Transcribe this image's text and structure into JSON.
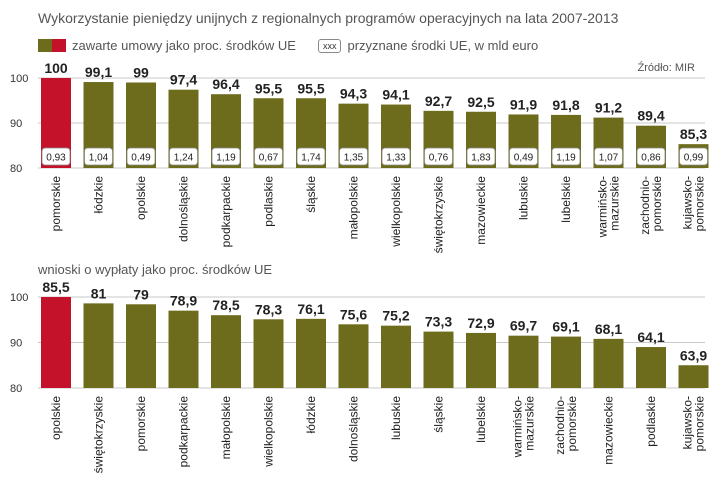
{
  "header": {
    "title": "Wykorzystanie pieniędzy unijnych z regionalnych programów operacyjnych na lata 2007-2013",
    "legend_contracts": "zawarte umowy jako proc. środków UE",
    "legend_box_sample": "xxx",
    "legend_granted": "przyznane środki UE, w mld euro",
    "source": "Źródło: MIR"
  },
  "colors": {
    "bar": "#6d6b1c",
    "highlight": "#c4122b",
    "grid": "#c8c8c8",
    "text": "#333333"
  },
  "chart_data": [
    {
      "type": "bar",
      "title": "zawarte umowy jako proc. środków UE",
      "ylim": [
        80,
        100
      ],
      "yticks": [
        "80",
        "90",
        "100"
      ],
      "categories": [
        "pomorskie",
        "łódzkie",
        "opolskie",
        "dolnośląskie",
        "podkarpackie",
        "podlaskie",
        "śląskie",
        "małopolskie",
        "wielkopolskie",
        "świętokrzyskie",
        "mazowieckie",
        "lubuskie",
        "lubelskie",
        "warmińsko-mazurskie",
        "zachodnio-pomorskie",
        "kujawsko-pomorskie"
      ],
      "values": [
        100,
        99.1,
        99,
        97.4,
        96.4,
        95.5,
        95.5,
        94.3,
        94.1,
        92.7,
        92.5,
        91.9,
        91.8,
        91.2,
        89.4,
        85.3
      ],
      "value_labels": [
        "100",
        "99,1",
        "99",
        "97,4",
        "96,4",
        "95,5",
        "95,5",
        "94,3",
        "94,1",
        "92,7",
        "92,5",
        "91,9",
        "91,8",
        "91,2",
        "89,4",
        "85,3"
      ],
      "granted_eur_bn": [
        "0,93",
        "1,04",
        "0,49",
        "1,24",
        "1,19",
        "0,67",
        "1,74",
        "1,35",
        "1,33",
        "0,76",
        "1,83",
        "0,49",
        "1,19",
        "1,07",
        "0,86",
        "0,99"
      ],
      "highlight_index": 0
    },
    {
      "type": "bar",
      "title": "wnioski o wypłaty jako proc. środków UE",
      "ylim": [
        80,
        100
      ],
      "yticks": [
        "80",
        "90",
        "100"
      ],
      "categories": [
        "opolskie",
        "świętokrzyskie",
        "pomorskie",
        "podkarpackie",
        "małopolskie",
        "wielkopolskie",
        "łódzkie",
        "dolnośląskie",
        "lubuskie",
        "śląskie",
        "lubelskie",
        "warmińsko-mazurskie",
        "zachodnio-pomorskie",
        "mazowieckie",
        "podlaskie",
        "kujawsko-pomorskie"
      ],
      "values": [
        85.5,
        81,
        79,
        78.9,
        78.5,
        78.3,
        76.1,
        75.6,
        75.2,
        73.3,
        72.9,
        69.7,
        69.1,
        68.1,
        64.1,
        63.9
      ],
      "value_labels": [
        "85,5",
        "81",
        "79",
        "78,9",
        "78,5",
        "78,3",
        "76,1",
        "75,6",
        "75,2",
        "73,3",
        "72,9",
        "69,7",
        "69,1",
        "68,1",
        "64,1",
        "63,9"
      ],
      "bar_levels_on_axis": [
        100,
        98.6,
        98.4,
        97,
        96,
        95.1,
        95.2,
        94,
        93.7,
        92.4,
        92.1,
        91.5,
        91.3,
        90.8,
        89,
        85
      ],
      "highlight_index": 0
    }
  ]
}
